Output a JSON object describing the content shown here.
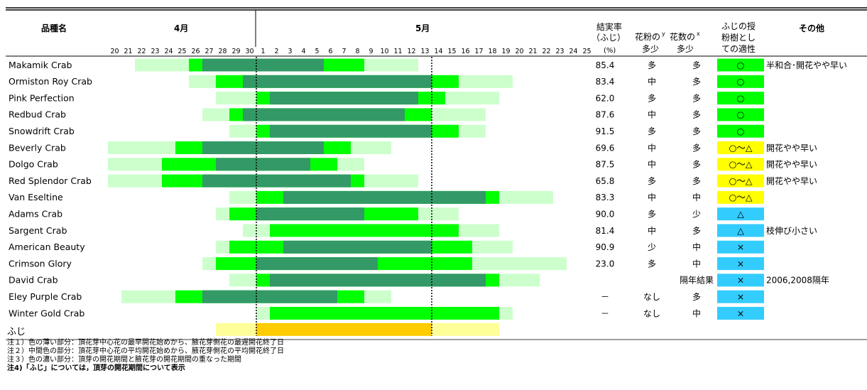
{
  "chart_data": {
    "type": "gantt",
    "header": {
      "variety": "品種名",
      "april": "4月",
      "may": "5月",
      "fruit_rate": [
        "結実率",
        "（ふじ）",
        "(%)"
      ],
      "pollen": [
        "花粉の",
        "多少"
      ],
      "pollen_sup": "y",
      "flower": [
        "花数の",
        "多少"
      ],
      "flower_sup": "x",
      "suit": [
        "ふじの授",
        "粉樹とし",
        "ての適性"
      ],
      "other": "その他"
    },
    "day_ticks": [
      "20",
      "21",
      "22",
      "23",
      "24",
      "25",
      "26",
      "27",
      "28",
      "29",
      "30",
      "1",
      "2",
      "3",
      "4",
      "5",
      "6",
      "7",
      "8",
      "9",
      "10",
      "11",
      "12",
      "13",
      "14",
      "15",
      "16",
      "17",
      "18",
      "19",
      "20",
      "21",
      "22",
      "23",
      "24",
      "25"
    ],
    "fuji_window": {
      "start": "5-1",
      "end": "5-13"
    },
    "colors": {
      "light": "#ccffcc",
      "mid": "#00ff00",
      "dark": "#339966",
      "fuji_light": "#ffff99",
      "fuji_dark": "#ffcc00",
      "suit_good": "#00ff00",
      "suit_mid": "#ffff00",
      "suit_low": "#33ccff"
    },
    "rows": [
      {
        "name": "Makamik Crab",
        "light": [
          "4-22",
          "5-12"
        ],
        "mid": [
          "4-26",
          "5-8"
        ],
        "dark": [
          "4-27",
          "5-5"
        ],
        "rate": "85.4",
        "pollen": "多",
        "flowers": "多",
        "suit": "○",
        "suit_level": "good",
        "other": "半和合･開花やや早い"
      },
      {
        "name": "Ormiston Roy Crab",
        "light": [
          "4-26",
          "5-19"
        ],
        "mid": [
          "4-28",
          "5-15"
        ],
        "dark": [
          "4-30",
          "5-13"
        ],
        "rate": "83.4",
        "pollen": "中",
        "flowers": "多",
        "suit": "○",
        "suit_level": "good",
        "other": ""
      },
      {
        "name": "Pink Perfection",
        "light": [
          "4-28",
          "5-18"
        ],
        "mid": [
          "4-31",
          "5-14"
        ],
        "dark": [
          "5-2",
          "5-12"
        ],
        "rate": "62.0",
        "pollen": "多",
        "flowers": "多",
        "suit": "○",
        "suit_level": "good",
        "other": ""
      },
      {
        "name": "Redbud Crab",
        "light": [
          "4-27",
          "5-17"
        ],
        "mid": [
          "4-29",
          "5-13"
        ],
        "dark": [
          "4-30",
          "5-11"
        ],
        "rate": "87.6",
        "pollen": "中",
        "flowers": "多",
        "suit": "○",
        "suit_level": "good",
        "other": ""
      },
      {
        "name": "Snowdrift Crab",
        "light": [
          "4-29",
          "5-17"
        ],
        "mid": [
          "5-1",
          "5-15"
        ],
        "dark": [
          "5-2",
          "5-13"
        ],
        "rate": "91.5",
        "pollen": "多",
        "flowers": "多",
        "suit": "○",
        "suit_level": "good",
        "other": ""
      },
      {
        "name": "Beverly Crab",
        "light": [
          "4-20",
          "5-10"
        ],
        "mid": [
          "4-25",
          "5-7"
        ],
        "dark": [
          "4-27",
          "5-5"
        ],
        "rate": "69.6",
        "pollen": "中",
        "flowers": "多",
        "suit": "○～△",
        "suit_level": "mid",
        "other": "開花やや早い"
      },
      {
        "name": "Dolgo Crab",
        "light": [
          "4-20",
          "5-8"
        ],
        "mid": [
          "4-24",
          "5-6"
        ],
        "dark": [
          "4-28",
          "5-4"
        ],
        "rate": "87.5",
        "pollen": "中",
        "flowers": "多",
        "suit": "○～△",
        "suit_level": "mid",
        "other": "開花やや早い"
      },
      {
        "name": "Red Splendor Crab",
        "light": [
          "4-20",
          "5-12"
        ],
        "mid": [
          "4-24",
          "5-8"
        ],
        "dark": [
          "4-27",
          "5-7"
        ],
        "rate": "65.8",
        "pollen": "多",
        "flowers": "多",
        "suit": "○～△",
        "suit_level": "mid",
        "other": "開花やや早い"
      },
      {
        "name": "Van Eseltine",
        "light": [
          "4-29",
          "5-22"
        ],
        "mid": [
          "4-31",
          "5-18"
        ],
        "dark": [
          "5-3",
          "5-17"
        ],
        "rate": "83.3",
        "pollen": "中",
        "flowers": "中",
        "suit": "○～△",
        "suit_level": "mid",
        "other": ""
      },
      {
        "name": "Adams Crab",
        "light": [
          "4-28",
          "5-15"
        ],
        "mid": [
          "4-29",
          "5-12"
        ],
        "dark": [
          "4-31",
          "5-8"
        ],
        "rate": "90.0",
        "pollen": "多",
        "flowers": "少",
        "suit": "△",
        "suit_level": "low",
        "other": ""
      },
      {
        "name": "Sargent Crab",
        "light": [
          "4-30",
          "5-18"
        ],
        "mid": [
          "5-2",
          "5-15"
        ],
        "dark": null,
        "rate": "81.4",
        "pollen": "中",
        "flowers": "多",
        "suit": "△",
        "suit_level": "low",
        "other": "枝伸び小さい"
      },
      {
        "name": "American Beauty",
        "light": [
          "4-28",
          "5-19"
        ],
        "mid": [
          "4-29",
          "5-16"
        ],
        "dark": [
          "5-3",
          "5-13"
        ],
        "rate": "90.9",
        "pollen": "少",
        "flowers": "中",
        "suit": "×",
        "suit_level": "low",
        "other": ""
      },
      {
        "name": "Crimson Glory",
        "light": [
          "4-27",
          "5-23"
        ],
        "mid": [
          "4-28",
          "5-16"
        ],
        "dark": [
          "5-1",
          "5-9"
        ],
        "rate": "23.0",
        "pollen": "多",
        "flowers": "中",
        "suit": "×",
        "suit_level": "low",
        "other": ""
      },
      {
        "name": "David Crab",
        "light": [
          "4-29",
          "5-21"
        ],
        "mid": [
          "5-1",
          "5-18"
        ],
        "dark": [
          "5-2",
          "5-17"
        ],
        "rate": "",
        "pollen": "",
        "flowers": "隔年結果",
        "suit": "×",
        "suit_level": "low",
        "other": "2006,2008隔年"
      },
      {
        "name": "Eley Purple Crab",
        "light": [
          "4-21",
          "5-10"
        ],
        "mid": [
          "4-25",
          "5-8"
        ],
        "dark": [
          "4-27",
          "5-6"
        ],
        "rate": "－",
        "pollen": "なし",
        "flowers": "多",
        "suit": "×",
        "suit_level": "low",
        "other": ""
      },
      {
        "name": "Winter Gold Crab",
        "light": [
          "5-1",
          "5-19"
        ],
        "mid": [
          "5-2",
          "5-18"
        ],
        "dark": null,
        "rate": "－",
        "pollen": "なし",
        "flowers": "中",
        "suit": "×",
        "suit_level": "low",
        "other": ""
      }
    ],
    "fuji": {
      "name": "ふじ",
      "light": [
        "4-28",
        "5-18"
      ],
      "dark": [
        "5-1",
        "5-13"
      ]
    },
    "notes": [
      "注１）色の薄い部分：頂花芽中心花の最早開花始めから、腋花芽側花の最遅開花終了日",
      "注２）中間色の部分：頂花芽中心花の平均開花始めから、腋花芽側花の平均開花終了日",
      "注３）色の濃い部分：頂芽の開花期間と腋花芽の開花期間の重なった期間",
      "注4)「ふじ」については，頂芽の開花期間について表示"
    ]
  }
}
